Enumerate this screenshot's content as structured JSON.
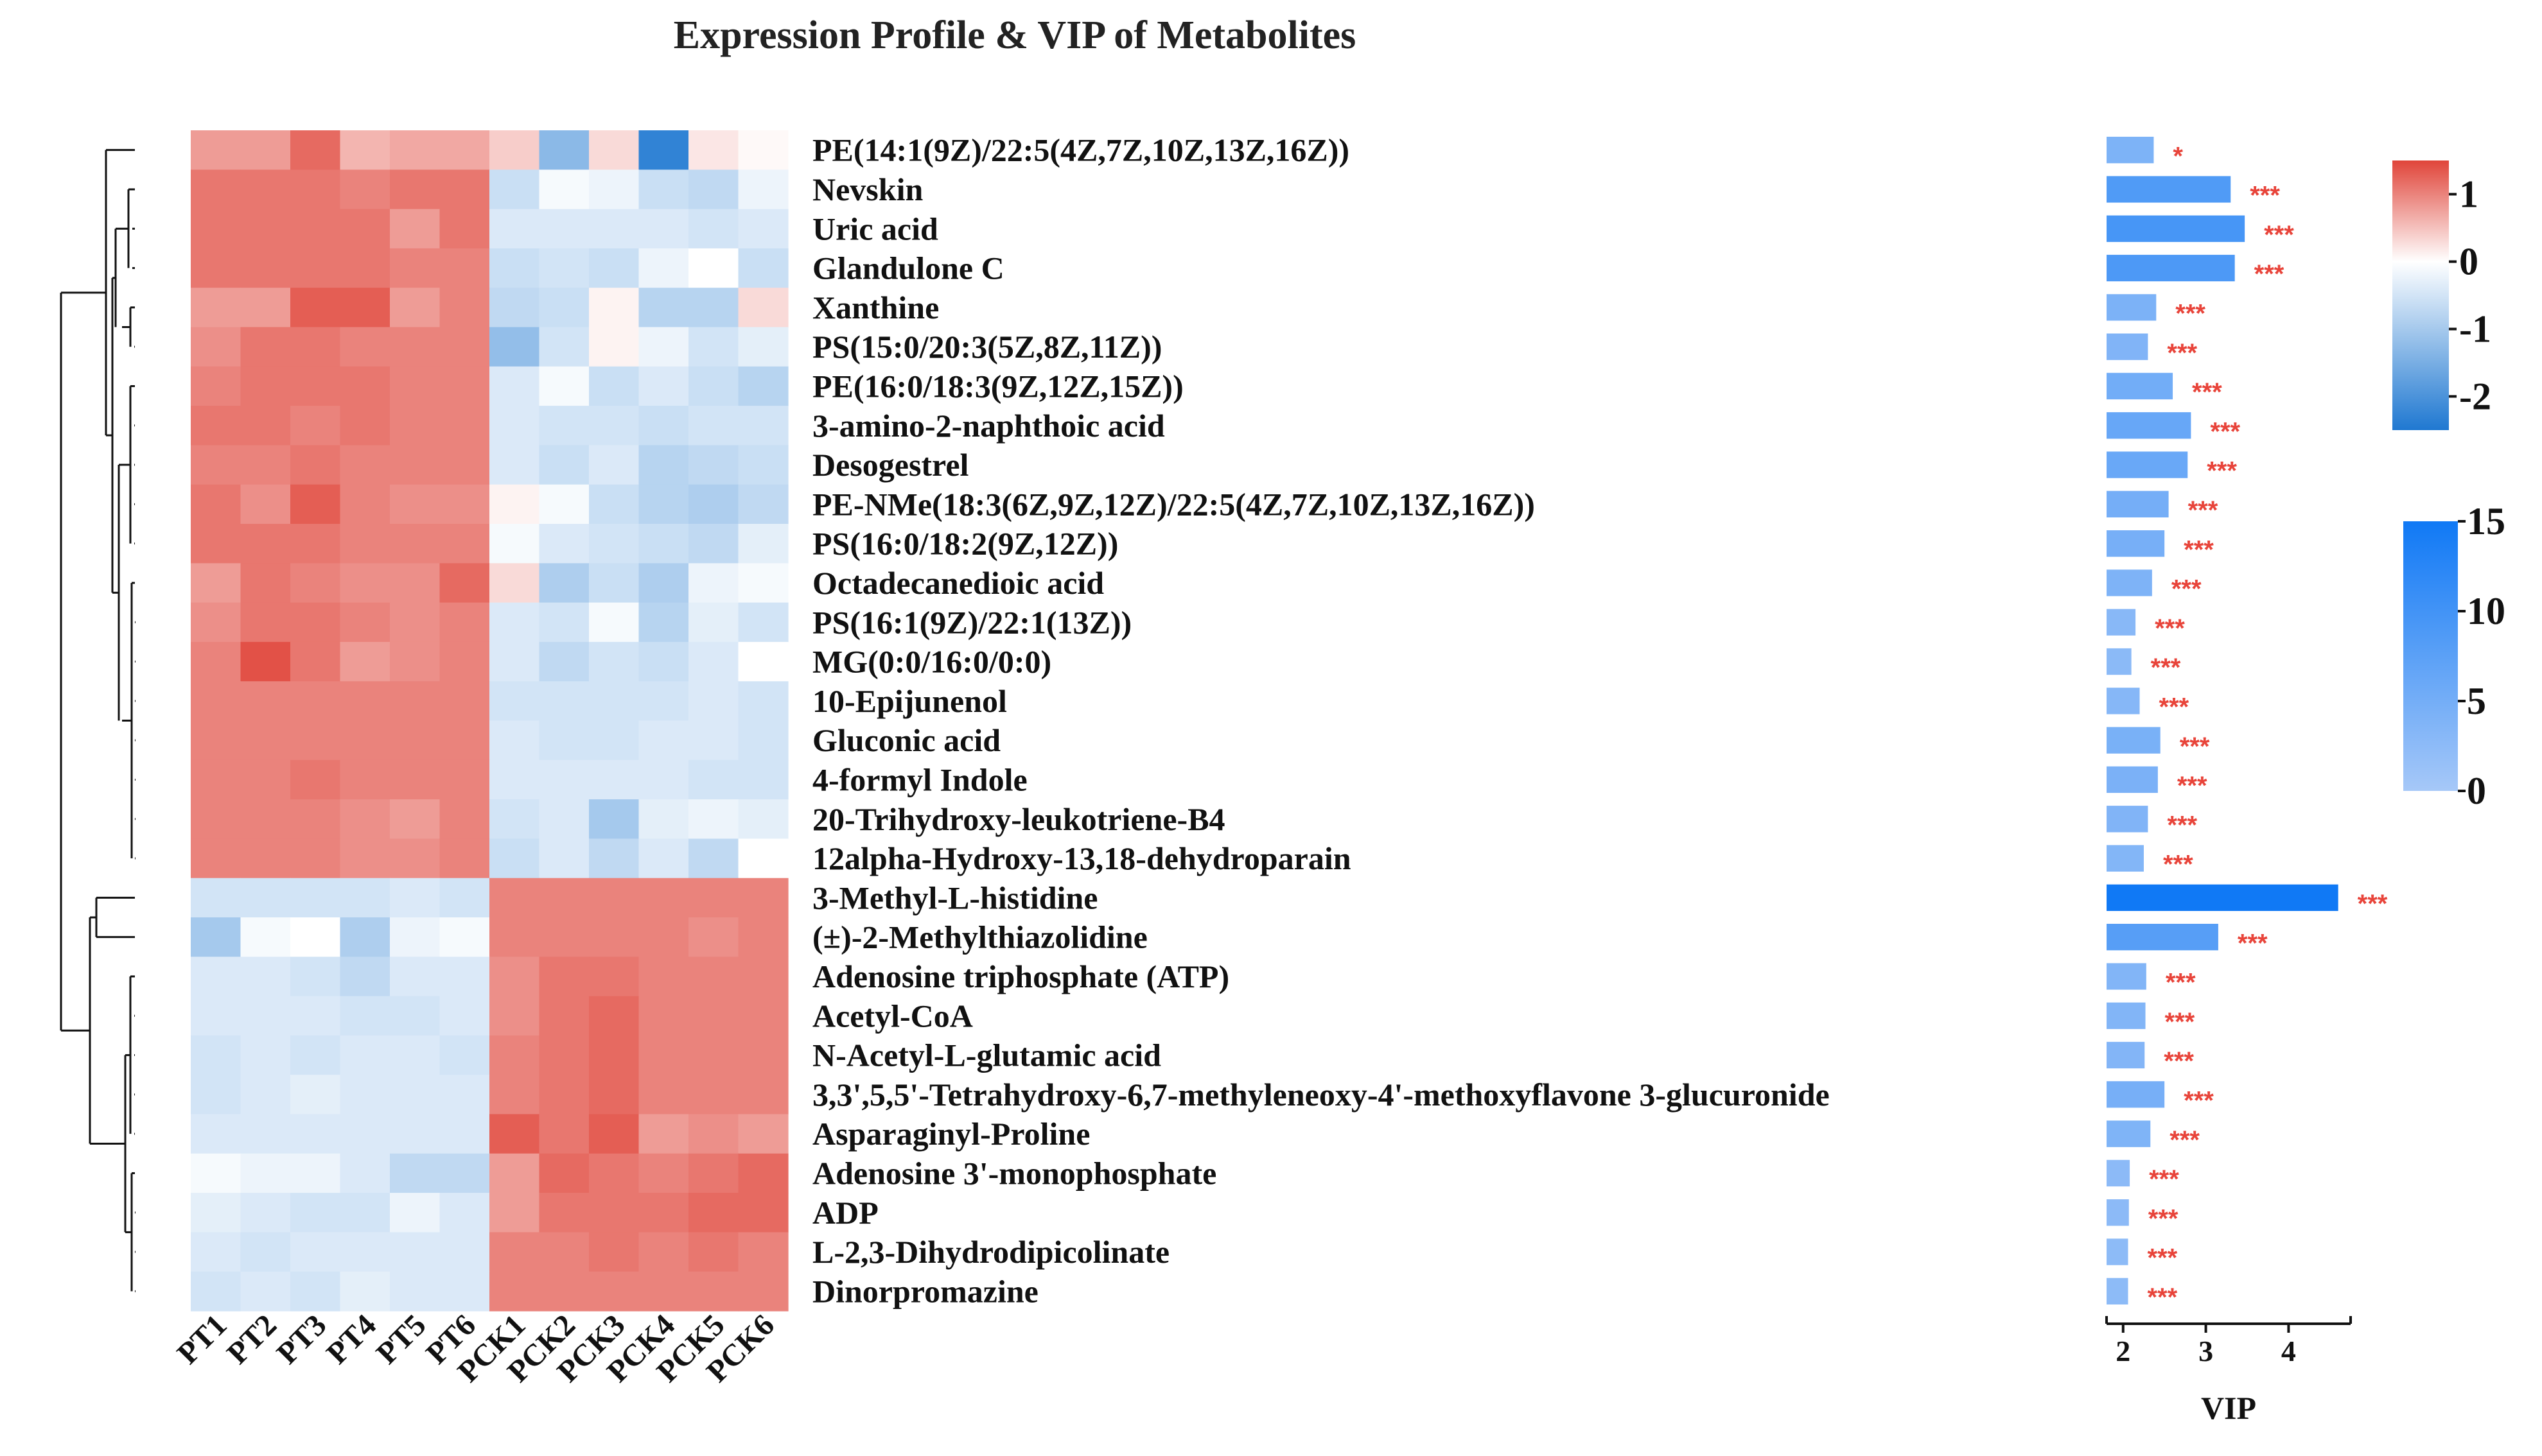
{
  "chart_data": {
    "type": "heatmap",
    "title": "Expression Profile & VIP of Metabolites",
    "columns": [
      "PT1",
      "PT2",
      "PT3",
      "PT4",
      "PT5",
      "PT6",
      "PCK1",
      "PCK2",
      "PCK3",
      "PCK4",
      "PCK5",
      "PCK6"
    ],
    "rows": [
      {
        "name": "PE(14:1(9Z)/22:5(4Z,7Z,10Z,13Z,16Z))",
        "values": [
          0.8,
          0.8,
          1.2,
          0.6,
          0.7,
          0.7,
          0.4,
          -1.3,
          0.3,
          -2.3,
          0.2,
          0.05
        ],
        "vip": 2.37,
        "sig": "*"
      },
      {
        "name": "Nevskin",
        "values": [
          1.1,
          1.1,
          1.1,
          1.0,
          1.1,
          1.1,
          -0.6,
          -0.1,
          -0.2,
          -0.6,
          -0.7,
          -0.2
        ],
        "vip": 3.3,
        "sig": "***"
      },
      {
        "name": "Uric acid",
        "values": [
          1.1,
          1.1,
          1.1,
          1.1,
          0.8,
          1.1,
          -0.4,
          -0.4,
          -0.4,
          -0.4,
          -0.5,
          -0.4
        ],
        "vip": 3.47,
        "sig": "***"
      },
      {
        "name": "Glandulone C",
        "values": [
          1.1,
          1.1,
          1.1,
          1.1,
          1.0,
          1.0,
          -0.6,
          -0.5,
          -0.6,
          -0.2,
          0.0,
          -0.6
        ],
        "vip": 3.35,
        "sig": "***"
      },
      {
        "name": "Xanthine",
        "values": [
          0.8,
          0.8,
          1.3,
          1.3,
          0.8,
          1.0,
          -0.7,
          -0.6,
          0.1,
          -0.8,
          -0.8,
          0.3
        ],
        "vip": 2.4,
        "sig": "***"
      },
      {
        "name": "PS(15:0/20:3(5Z,8Z,11Z))",
        "values": [
          0.9,
          1.1,
          1.1,
          1.0,
          1.0,
          1.0,
          -1.2,
          -0.5,
          0.1,
          -0.2,
          -0.5,
          -0.3
        ],
        "vip": 2.3,
        "sig": "***"
      },
      {
        "name": "PE(16:0/18:3(9Z,12Z,15Z))",
        "values": [
          1.0,
          1.1,
          1.1,
          1.1,
          1.0,
          1.0,
          -0.4,
          -0.1,
          -0.6,
          -0.4,
          -0.6,
          -0.8
        ],
        "vip": 2.6,
        "sig": "***"
      },
      {
        "name": "3-amino-2-naphthoic acid",
        "values": [
          1.1,
          1.1,
          1.0,
          1.1,
          1.0,
          1.0,
          -0.4,
          -0.5,
          -0.5,
          -0.6,
          -0.5,
          -0.5
        ],
        "vip": 2.82,
        "sig": "***"
      },
      {
        "name": "Desogestrel",
        "values": [
          1.0,
          1.0,
          1.1,
          1.0,
          1.0,
          1.0,
          -0.4,
          -0.6,
          -0.4,
          -0.8,
          -0.7,
          -0.6
        ],
        "vip": 2.78,
        "sig": "***"
      },
      {
        "name": "PE-NMe(18:3(6Z,9Z,12Z)/22:5(4Z,7Z,10Z,13Z,16Z))",
        "values": [
          1.1,
          0.9,
          1.3,
          1.0,
          0.9,
          0.9,
          0.1,
          -0.1,
          -0.6,
          -0.8,
          -0.9,
          -0.7
        ],
        "vip": 2.55,
        "sig": "***"
      },
      {
        "name": "PS(16:0/18:2(9Z,12Z))",
        "values": [
          1.1,
          1.1,
          1.1,
          1.0,
          1.0,
          1.0,
          -0.1,
          -0.4,
          -0.5,
          -0.6,
          -0.7,
          -0.3
        ],
        "vip": 2.5,
        "sig": "***"
      },
      {
        "name": "Octadecanedioic acid",
        "values": [
          0.8,
          1.1,
          1.0,
          0.9,
          0.9,
          1.2,
          0.3,
          -0.9,
          -0.6,
          -0.9,
          -0.2,
          -0.1
        ],
        "vip": 2.35,
        "sig": "***"
      },
      {
        "name": "PS(16:1(9Z)/22:1(13Z))",
        "values": [
          0.9,
          1.1,
          1.1,
          1.0,
          0.9,
          1.0,
          -0.4,
          -0.5,
          -0.1,
          -0.8,
          -0.3,
          -0.5
        ],
        "vip": 2.15,
        "sig": "***"
      },
      {
        "name": "MG(0:0/16:0/0:0)",
        "values": [
          1.0,
          1.4,
          1.1,
          0.8,
          0.9,
          1.0,
          -0.4,
          -0.7,
          -0.5,
          -0.6,
          -0.4,
          0.0
        ],
        "vip": 2.1,
        "sig": "***"
      },
      {
        "name": "10-Epijunenol",
        "values": [
          1.0,
          1.0,
          1.0,
          1.0,
          1.0,
          1.0,
          -0.5,
          -0.5,
          -0.5,
          -0.5,
          -0.4,
          -0.5
        ],
        "vip": 2.2,
        "sig": "***"
      },
      {
        "name": "Gluconic acid",
        "values": [
          1.0,
          1.0,
          1.0,
          1.0,
          1.0,
          1.0,
          -0.4,
          -0.5,
          -0.5,
          -0.4,
          -0.4,
          -0.5
        ],
        "vip": 2.45,
        "sig": "***"
      },
      {
        "name": "4-formyl Indole",
        "values": [
          1.0,
          1.0,
          1.1,
          1.0,
          1.0,
          1.0,
          -0.4,
          -0.4,
          -0.4,
          -0.4,
          -0.5,
          -0.5
        ],
        "vip": 2.42,
        "sig": "***"
      },
      {
        "name": "20-Trihydroxy-leukotriene-B4",
        "values": [
          1.0,
          1.0,
          1.0,
          0.9,
          0.8,
          1.0,
          -0.5,
          -0.4,
          -1.0,
          -0.3,
          -0.2,
          -0.3
        ],
        "vip": 2.3,
        "sig": "***"
      },
      {
        "name": "12alpha-Hydroxy-13,18-dehydroparain",
        "values": [
          1.0,
          1.0,
          1.0,
          0.9,
          0.9,
          1.0,
          -0.6,
          -0.4,
          -0.7,
          -0.4,
          -0.7,
          0.0
        ],
        "vip": 2.25,
        "sig": "***"
      },
      {
        "name": "3-Methyl-L-histidine",
        "values": [
          -0.5,
          -0.5,
          -0.5,
          -0.5,
          -0.4,
          -0.5,
          1.0,
          1.0,
          1.0,
          1.0,
          1.0,
          1.0
        ],
        "vip": 4.6,
        "sig": "***"
      },
      {
        "name": "(±)-2-Methylthiazolidine",
        "values": [
          -1.0,
          -0.1,
          0.0,
          -0.9,
          -0.2,
          -0.1,
          1.0,
          1.0,
          1.0,
          1.0,
          0.9,
          1.0
        ],
        "vip": 3.15,
        "sig": "***"
      },
      {
        "name": "Adenosine triphosphate (ATP)",
        "values": [
          -0.4,
          -0.4,
          -0.5,
          -0.7,
          -0.4,
          -0.4,
          0.9,
          1.1,
          1.1,
          1.0,
          1.0,
          1.0
        ],
        "vip": 2.28,
        "sig": "***"
      },
      {
        "name": "Acetyl-CoA",
        "values": [
          -0.4,
          -0.4,
          -0.4,
          -0.5,
          -0.5,
          -0.4,
          0.9,
          1.1,
          1.2,
          1.0,
          1.0,
          1.0
        ],
        "vip": 2.27,
        "sig": "***"
      },
      {
        "name": "N-Acetyl-L-glutamic acid",
        "values": [
          -0.5,
          -0.4,
          -0.5,
          -0.4,
          -0.4,
          -0.5,
          1.0,
          1.1,
          1.2,
          1.0,
          1.0,
          1.0
        ],
        "vip": 2.26,
        "sig": "***"
      },
      {
        "name": "3,3',5,5'-Tetrahydroxy-6,7-methyleneoxy-4'-methoxyflavone 3-glucuronide",
        "values": [
          -0.5,
          -0.4,
          -0.3,
          -0.4,
          -0.4,
          -0.4,
          1.0,
          1.1,
          1.2,
          1.0,
          1.0,
          1.0
        ],
        "vip": 2.5,
        "sig": "***"
      },
      {
        "name": "Asparaginyl-Proline",
        "values": [
          -0.4,
          -0.4,
          -0.4,
          -0.4,
          -0.4,
          -0.4,
          1.3,
          1.1,
          1.3,
          0.8,
          0.9,
          0.8
        ],
        "vip": 2.33,
        "sig": "***"
      },
      {
        "name": "Adenosine 3'-monophosphate",
        "values": [
          -0.1,
          -0.2,
          -0.2,
          -0.4,
          -0.7,
          -0.7,
          0.8,
          1.2,
          1.1,
          1.0,
          1.1,
          1.2
        ],
        "vip": 2.08,
        "sig": "***"
      },
      {
        "name": "ADP",
        "values": [
          -0.3,
          -0.4,
          -0.5,
          -0.5,
          -0.2,
          -0.4,
          0.8,
          1.1,
          1.1,
          1.1,
          1.2,
          1.2
        ],
        "vip": 2.07,
        "sig": "***"
      },
      {
        "name": "L-2,3-Dihydrodipicolinate",
        "values": [
          -0.4,
          -0.5,
          -0.4,
          -0.4,
          -0.4,
          -0.4,
          1.0,
          1.0,
          1.1,
          1.0,
          1.1,
          1.0
        ],
        "vip": 2.06,
        "sig": "***"
      },
      {
        "name": "Dinorpromazine",
        "values": [
          -0.5,
          -0.4,
          -0.5,
          -0.3,
          -0.4,
          -0.4,
          1.0,
          1.0,
          1.0,
          1.0,
          1.0,
          1.0
        ],
        "vip": 2.06,
        "sig": "***"
      }
    ],
    "color_scale": {
      "ticks": [
        "1",
        "0",
        "-1",
        "-2"
      ],
      "tick_values": [
        1,
        0,
        -1,
        -2
      ],
      "min": -2.5,
      "max": 1.5,
      "low_color": "#1f78d1",
      "mid_color": "#ffffff",
      "high_color": "#e0453a"
    },
    "vip_axis": {
      "label": "VIP",
      "ticks": [
        "2",
        "3",
        "4"
      ],
      "tick_values": [
        2,
        3,
        4
      ],
      "min": 1.8,
      "max": 4.75
    },
    "vip_scale": {
      "ticks": [
        "15",
        "10",
        "5",
        "0"
      ],
      "tick_values": [
        15,
        10,
        5,
        0
      ],
      "min": 0,
      "max": 15,
      "low_color": "#a6c8f8",
      "high_color": "#1079f5"
    },
    "sig_color": "#e8443a"
  }
}
